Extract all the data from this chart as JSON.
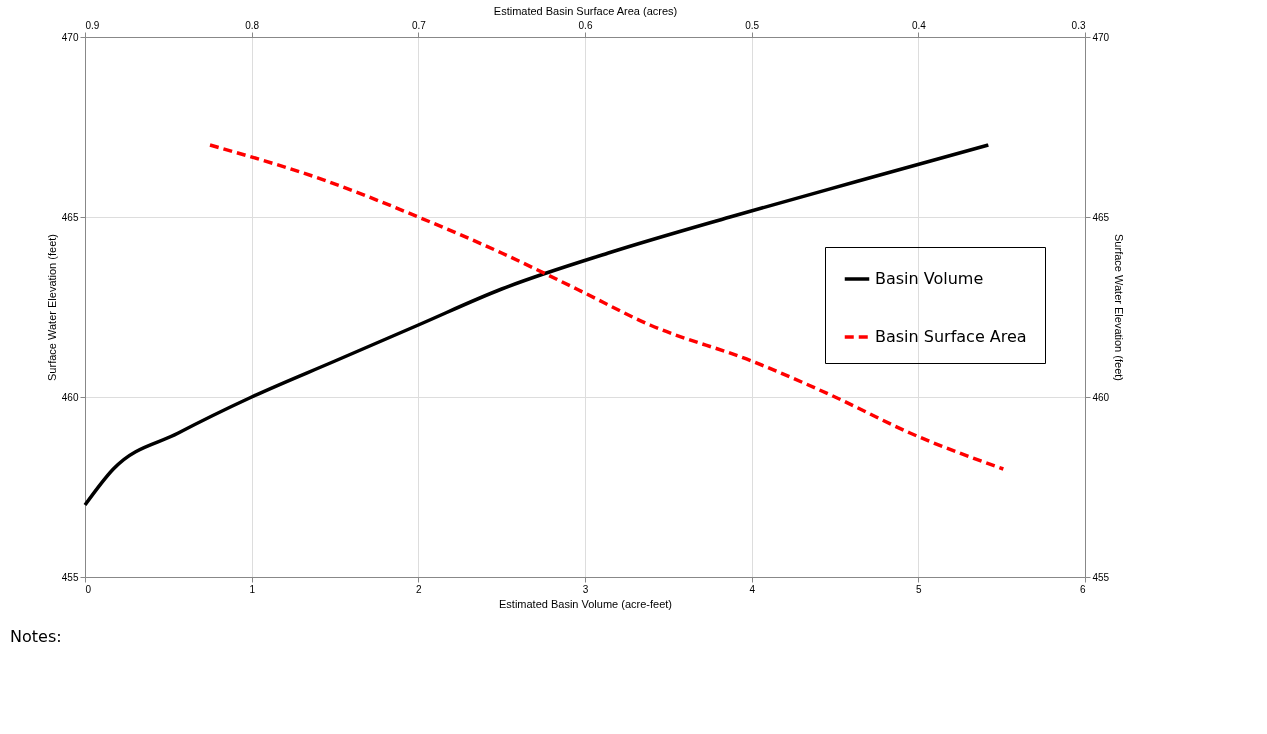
{
  "chart_data": {
    "type": "line",
    "xlabel": "Estimated Basin Volume (acre-feet)",
    "x2label": "Estimated Basin Surface Area (acres)",
    "ylabel": "Surface Water Elevation (feet)",
    "y2label": "Surface Water Elevation (feet)",
    "xlim": [
      0,
      6
    ],
    "xticks": [
      0,
      1,
      2,
      3,
      4,
      5,
      6
    ],
    "x2lim": [
      0.9,
      0.3
    ],
    "x2ticks": [
      0.9,
      0.8,
      0.7,
      0.6,
      0.5,
      0.4,
      0.3
    ],
    "ylim": [
      455,
      470
    ],
    "yticks": [
      455,
      460,
      465,
      470
    ],
    "y2lim": [
      455,
      470
    ],
    "y2ticks": [
      455,
      460,
      465,
      470
    ],
    "grid": true,
    "legend": "right",
    "marker": "none",
    "annotations": [
      "Notes:"
    ],
    "series": [
      {
        "name": "Basin Volume",
        "color": "#000000",
        "line_style": "solid",
        "x": [
          0,
          0.17,
          0.56,
          1.0,
          1.5,
          2.0,
          2.5,
          3.14,
          3.87,
          4.64,
          5.42
        ],
        "values": [
          457,
          458,
          459,
          460,
          461,
          462,
          463,
          464,
          465,
          466,
          467
        ]
      },
      {
        "name": "Basin Surface Area",
        "color": "#ff0000",
        "line_style": "dashed",
        "axis": "x2",
        "x": [
          0.825,
          0.755,
          0.7,
          0.65,
          0.605,
          0.561,
          0.5,
          0.45,
          0.405,
          0.349
        ],
        "values": [
          467,
          466,
          465,
          464,
          463,
          462,
          461,
          460,
          459,
          458
        ]
      }
    ]
  }
}
